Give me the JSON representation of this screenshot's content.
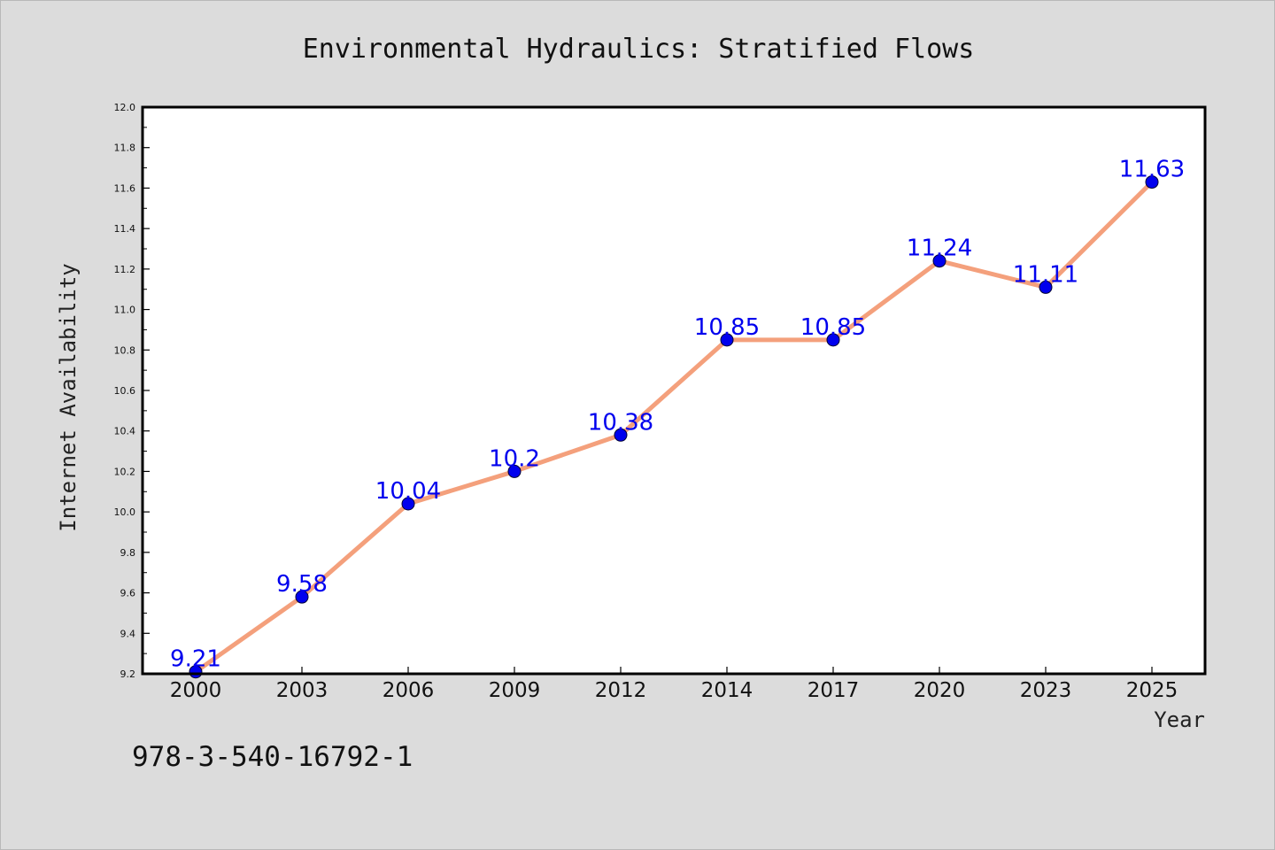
{
  "chart_data": {
    "type": "line",
    "title": "Environmental Hydraulics: Stratified Flows",
    "xlabel": "Year",
    "ylabel": "Internet Availability",
    "categories": [
      "2000",
      "2003",
      "2006",
      "2009",
      "2012",
      "2014",
      "2017",
      "2020",
      "2023",
      "2025"
    ],
    "series": [
      {
        "values": [
          9.21,
          9.58,
          10.04,
          10.2,
          10.38,
          10.85,
          10.85,
          11.24,
          11.11,
          11.63
        ],
        "labels": [
          "9.21",
          "9.58",
          "10.04",
          "10.2",
          "10.38",
          "10.85",
          "10.85",
          "11.24",
          "11.11",
          "11.63"
        ],
        "line_color": "#f4a07c",
        "marker_color": "#0000ee",
        "label_color": "#0000ee"
      }
    ],
    "ylim": [
      9.2,
      12.0
    ],
    "y_ticks": [
      "9.2",
      "9.4",
      "9.6",
      "9.8",
      "10.0",
      "10.2",
      "10.4",
      "10.6",
      "10.8",
      "11.0",
      "11.2",
      "11.4",
      "11.6",
      "11.8",
      "12.0"
    ],
    "grid": false,
    "legend": "none"
  },
  "footer": {
    "isbn": "978-3-540-16792-1"
  },
  "colors": {
    "background": "#dcdcdc",
    "plot_background": "#ffffff",
    "frame": "#000000"
  }
}
